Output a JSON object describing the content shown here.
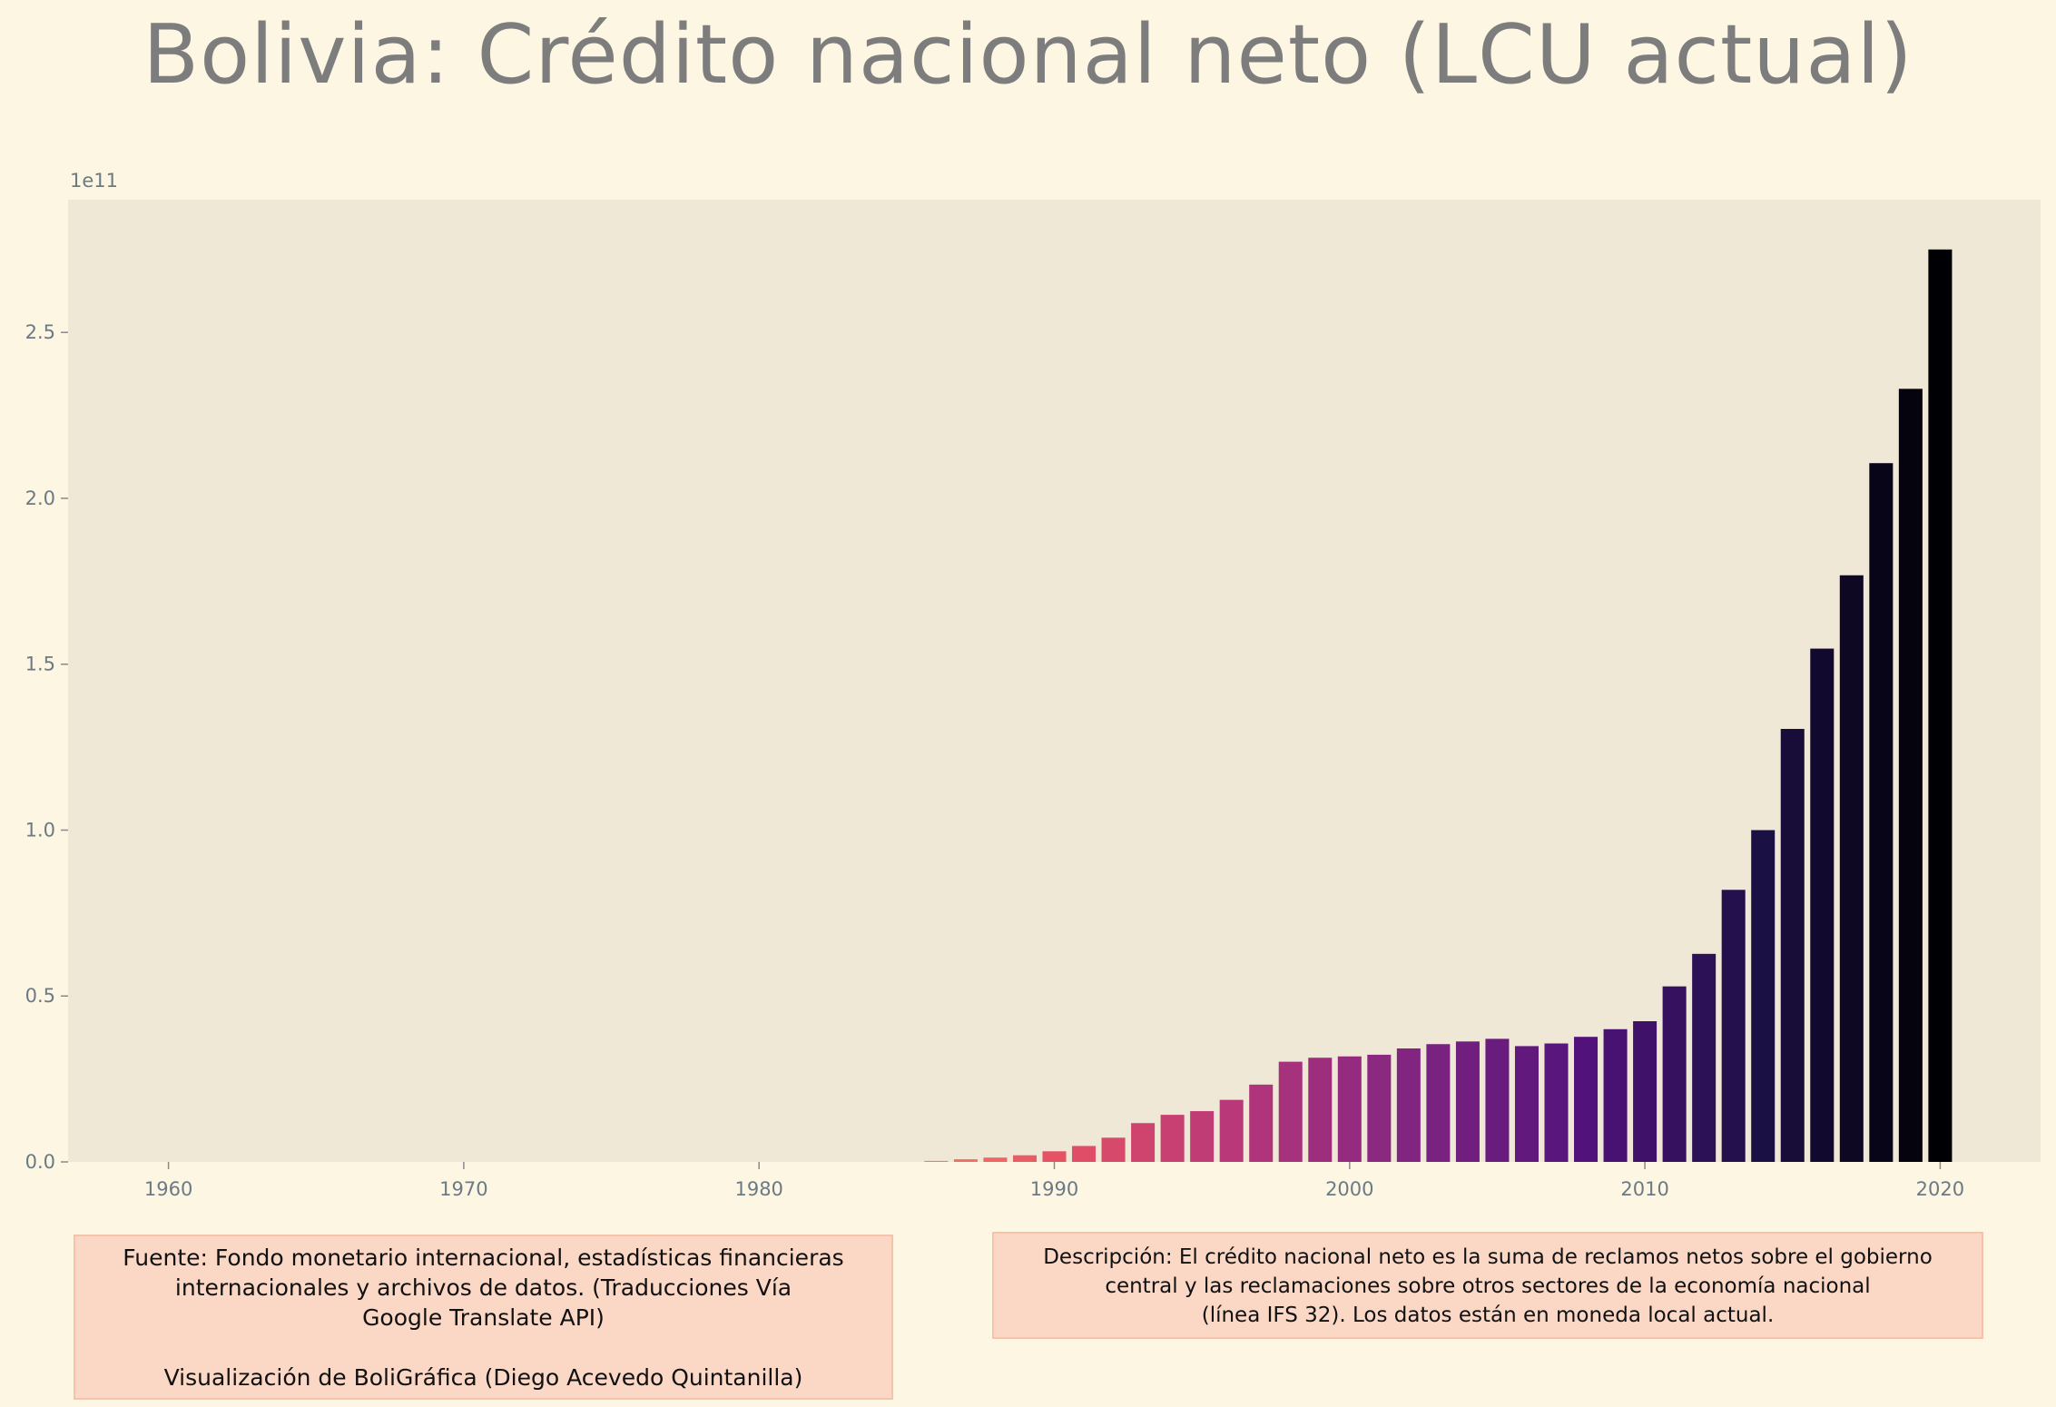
{
  "title": "Bolivia:  Crédito nacional neto (LCU actual)",
  "source_note": {
    "lines": [
      "Fuente: Fondo monetario internacional, estadísticas financieras",
      "internacionales y archivos de datos. (Traducciones Vía",
      "Google Translate API)"
    ],
    "credit": "Visualización de BoliGráfica (Diego Acevedo Quintanilla)"
  },
  "description_note": {
    "lines": [
      "Descripción: El crédito nacional neto es la suma de reclamos netos sobre el gobierno",
      "central y las reclamaciones sobre otros sectores de la economía nacional",
      "(línea IFS 32). Los datos están en moneda local actual."
    ]
  },
  "colors": {
    "background": "#fdf6e3",
    "plot_background": "#efe8d6",
    "bar_palette": "magma"
  },
  "chart_data": {
    "type": "bar",
    "title": "Bolivia:  Crédito nacional neto (LCU actual)",
    "scale_label": "1e11",
    "xlim": [
      1956.6,
      2023.4
    ],
    "ylim": [
      0,
      2.9
    ],
    "x_ticks": [
      1960,
      1970,
      1980,
      1990,
      2000,
      2010,
      2020
    ],
    "y_ticks": [
      0.0,
      0.5,
      1.0,
      1.5,
      2.0,
      2.5
    ],
    "y_tick_labels": [
      "0.0",
      "0.5",
      "1.0",
      "1.5",
      "2.0",
      "2.5"
    ],
    "x_tick_labels": [
      "1960",
      "1970",
      "1980",
      "1990",
      "2000",
      "2010",
      "2020"
    ],
    "grid": false,
    "years": [
      1986,
      1987,
      1988,
      1989,
      1990,
      1991,
      1992,
      1993,
      1994,
      1995,
      1996,
      1997,
      1998,
      1999,
      2000,
      2001,
      2002,
      2003,
      2004,
      2005,
      2006,
      2007,
      2008,
      2009,
      2010,
      2011,
      2012,
      2013,
      2014,
      2015,
      2016,
      2017,
      2018,
      2019,
      2020
    ],
    "values": [
      0.003,
      0.008,
      0.013,
      0.02,
      0.032,
      0.048,
      0.073,
      0.117,
      0.142,
      0.153,
      0.187,
      0.233,
      0.302,
      0.314,
      0.318,
      0.323,
      0.342,
      0.355,
      0.363,
      0.371,
      0.349,
      0.357,
      0.377,
      0.4,
      0.424,
      0.529,
      0.627,
      0.82,
      1.0,
      1.305,
      1.547,
      1.768,
      2.106,
      2.33,
      2.75
    ]
  }
}
